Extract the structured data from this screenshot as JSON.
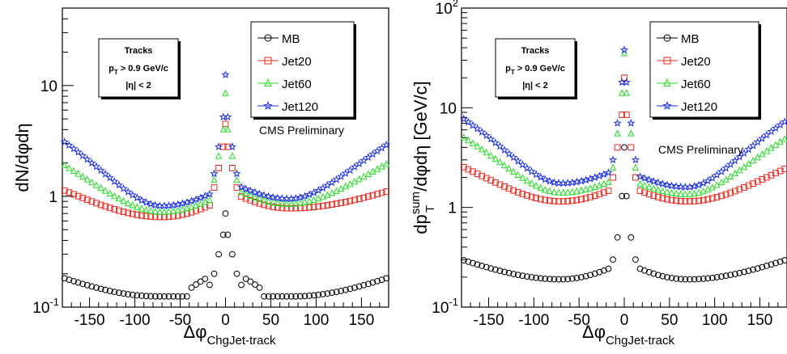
{
  "chart_data": [
    {
      "type": "scatter",
      "id": "left",
      "xlabel": "Δφ",
      "xlabel_sub": "ChgJet-track",
      "ylabel": "dN/dφdη",
      "xlim": [
        -180,
        180
      ],
      "ylim": [
        0.1,
        50
      ],
      "yscale": "log",
      "x_ticks": [
        -150,
        -100,
        -50,
        0,
        50,
        100,
        150
      ],
      "y_ticks": [
        {
          "value": 0.1,
          "base": "10",
          "exp": "-1"
        },
        {
          "value": 1,
          "base": "1",
          "exp": ""
        },
        {
          "value": 10,
          "base": "10",
          "exp": ""
        }
      ],
      "info_box": {
        "line1": "Tracks",
        "line2_main": "p",
        "line2_sub": "T",
        "line2_rest": " > 0.9 GeV/c",
        "line3": "|η| < 2"
      },
      "annotation": "CMS Preliminary",
      "legend": [
        {
          "name": "MB",
          "color": "#000000",
          "marker": "circle"
        },
        {
          "name": "Jet20",
          "color": "#e8281e",
          "marker": "square"
        },
        {
          "name": "Jet60",
          "color": "#22dd22",
          "marker": "triangle"
        },
        {
          "name": "Jet120",
          "color": "#1a2ee8",
          "marker": "star"
        }
      ],
      "series": [
        {
          "name": "MB",
          "baseline": "0.18*(x/180)^2 + 0.125*(1-(x/180)^2)",
          "peak": [
            0.7,
            0.45,
            0.3,
            0.2
          ],
          "bump": 1.35
        },
        {
          "name": "Jet20",
          "edge": 1.15,
          "min": 0.65,
          "min_x": -80,
          "edge_right": 1.12,
          "min_right": 0.78,
          "peak": [
            4.5,
            2.8,
            1.8,
            1.2
          ]
        },
        {
          "name": "Jet60",
          "edge": 1.95,
          "min": 0.72,
          "edge_right": 2.0,
          "min_right": 0.85,
          "peak": [
            8.5,
            4.0,
            2.3,
            1.4
          ]
        },
        {
          "name": "Jet120",
          "edge": 3.2,
          "min": 0.82,
          "edge_right": 3.0,
          "min_right": 0.95,
          "peak": [
            12.5,
            5.2,
            2.8,
            1.6
          ]
        }
      ]
    },
    {
      "type": "scatter",
      "id": "right",
      "xlabel": "Δφ",
      "xlabel_sub": "ChgJet-track",
      "ylabel_main": "dp",
      "ylabel_sup": "sum",
      "ylabel_sub": "T",
      "ylabel_rest": "/dφdη [GeV/c]",
      "xlim": [
        -180,
        180
      ],
      "ylim": [
        0.1,
        100
      ],
      "yscale": "log",
      "x_ticks": [
        -150,
        -100,
        -50,
        0,
        50,
        100,
        150
      ],
      "y_ticks": [
        {
          "value": 0.1,
          "base": "10",
          "exp": "-1"
        },
        {
          "value": 1,
          "base": "1",
          "exp": ""
        },
        {
          "value": 10,
          "base": "10",
          "exp": ""
        },
        {
          "value": 100,
          "base": "10",
          "exp": "2"
        }
      ],
      "info_box": {
        "line1": "Tracks",
        "line2_main": "p",
        "line2_sub": "T",
        "line2_rest": " > 0.9 GeV/c",
        "line3": "|η| < 2"
      },
      "annotation": "CMS Preliminary",
      "legend": [
        {
          "name": "MB",
          "color": "#000000",
          "marker": "circle"
        },
        {
          "name": "Jet20",
          "color": "#e8281e",
          "marker": "square"
        },
        {
          "name": "Jet60",
          "color": "#22dd22",
          "marker": "triangle"
        },
        {
          "name": "Jet120",
          "color": "#1a2ee8",
          "marker": "star"
        }
      ],
      "series": [
        {
          "name": "MB",
          "edge": 0.3,
          "min": 0.19,
          "edge_right": 0.3,
          "min_right": 0.19,
          "peak": [
            4.0,
            1.3,
            0.5,
            0.3
          ]
        },
        {
          "name": "Jet20",
          "edge": 2.6,
          "min": 1.15,
          "edge_right": 2.5,
          "min_right": 1.15,
          "peak": [
            20,
            8.5,
            4.0,
            2.0
          ]
        },
        {
          "name": "Jet60",
          "edge": 5.2,
          "min": 1.4,
          "edge_right": 5.0,
          "min_right": 1.35,
          "peak": [
            35,
            14,
            5.5,
            2.5
          ]
        },
        {
          "name": "Jet120",
          "edge": 8.0,
          "min": 1.75,
          "edge_right": 7.5,
          "min_right": 1.6,
          "peak": [
            38,
            18,
            7.0,
            3.0
          ]
        }
      ]
    }
  ]
}
